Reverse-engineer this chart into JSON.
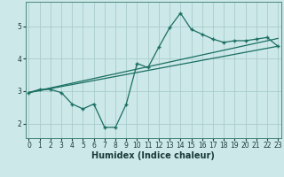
{
  "xlabel": "Humidex (Indice chaleur)",
  "bg_color": "#cce8e8",
  "line_color": "#1a6e62",
  "grid_color": "#aacccc",
  "xlim": [
    -0.3,
    23.3
  ],
  "ylim": [
    1.55,
    5.75
  ],
  "yticks": [
    2,
    3,
    4,
    5
  ],
  "xticks": [
    0,
    1,
    2,
    3,
    4,
    5,
    6,
    7,
    8,
    9,
    10,
    11,
    12,
    13,
    14,
    15,
    16,
    17,
    18,
    19,
    20,
    21,
    22,
    23
  ],
  "curve1_x": [
    0,
    1,
    2,
    3,
    4,
    5,
    6,
    7,
    8,
    9,
    10,
    11,
    12,
    13,
    14,
    15,
    16,
    17,
    18,
    19,
    20,
    21,
    22,
    23
  ],
  "curve1_y": [
    2.95,
    3.05,
    3.05,
    2.95,
    2.6,
    2.45,
    2.6,
    1.88,
    1.88,
    2.6,
    3.85,
    3.72,
    4.35,
    4.95,
    5.4,
    4.9,
    4.75,
    4.6,
    4.5,
    4.55,
    4.55,
    4.6,
    4.65,
    4.38
  ],
  "curve2_x": [
    0,
    23
  ],
  "curve2_y": [
    2.95,
    4.38
  ],
  "curve3_x": [
    0,
    23
  ],
  "curve3_y": [
    2.95,
    4.62
  ],
  "tick_fontsize": 5.5,
  "xlabel_fontsize": 7.0
}
